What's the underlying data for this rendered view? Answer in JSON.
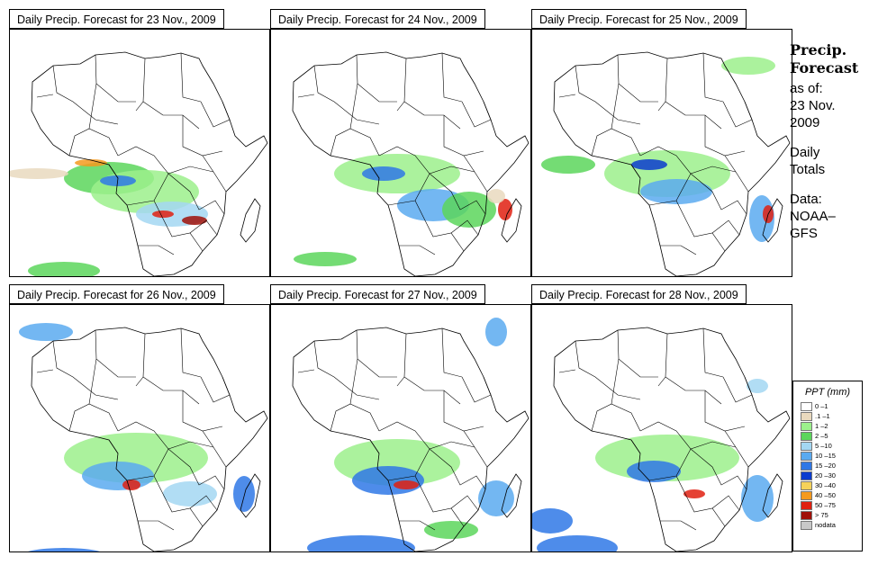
{
  "panels": [
    {
      "title": "Daily Precip. Forecast for  23 Nov., 2009",
      "variant": 0
    },
    {
      "title": "Daily Precip. Forecast for  24 Nov., 2009",
      "variant": 1
    },
    {
      "title": "Daily Precip. Forecast for  25 Nov., 2009",
      "variant": 2
    },
    {
      "title": "Daily Precip. Forecast for  26 Nov., 2009",
      "variant": 3
    },
    {
      "title": "Daily Precip. Forecast for  27 Nov., 2009",
      "variant": 4
    },
    {
      "title": "Daily Precip. Forecast for  28 Nov., 2009",
      "variant": 5
    }
  ],
  "info": {
    "title_line1": "Precip.",
    "title_line2": "Forecast",
    "asof_line1": "as of:",
    "asof_line2": "23 Nov.",
    "asof_line3": "2009",
    "daily_line1": "Daily",
    "daily_line2": "Totals",
    "data_line1": "Data:",
    "data_line2": "NOAA–",
    "data_line3": "GFS"
  },
  "legend": {
    "title": "PPT (mm)",
    "items": [
      {
        "label": "0 –1",
        "color": "#ffffff"
      },
      {
        "label": ".1 –1",
        "color": "#e9d9be"
      },
      {
        "label": "1 –2",
        "color": "#9cf08c"
      },
      {
        "label": "2 –5",
        "color": "#5cd65c"
      },
      {
        "label": "5 –10",
        "color": "#a3d7f2"
      },
      {
        "label": "10 –15",
        "color": "#5aaaf0"
      },
      {
        "label": "15 –20",
        "color": "#2f78e6"
      },
      {
        "label": "20 –30",
        "color": "#0a3ccf"
      },
      {
        "label": "30 –40",
        "color": "#f5d25a"
      },
      {
        "label": "40 –50",
        "color": "#f59a1e"
      },
      {
        "label": "50 –75",
        "color": "#e02010"
      },
      {
        "label": "> 75",
        "color": "#a01008"
      },
      {
        "label": "nodata",
        "color": "#c8c8c8"
      }
    ]
  }
}
